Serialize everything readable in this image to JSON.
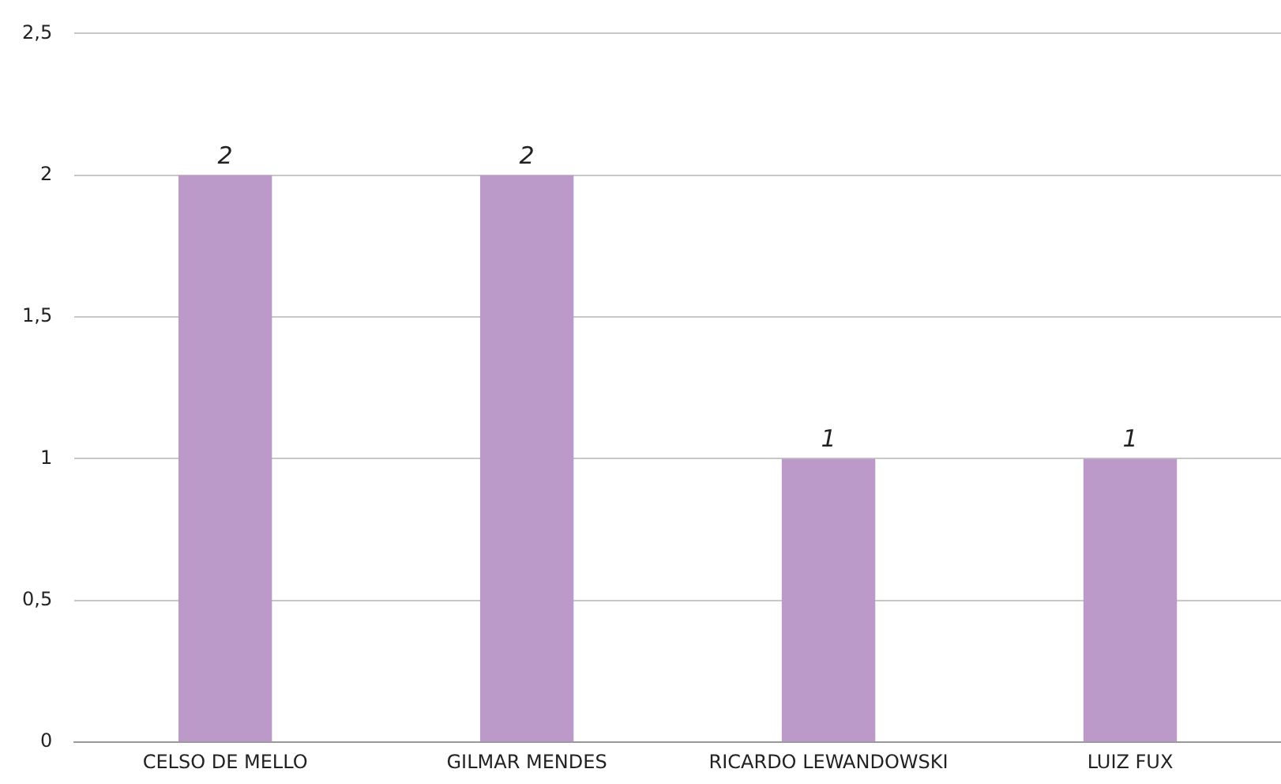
{
  "chart_data": {
    "type": "bar",
    "categories": [
      "CELSO DE MELLO",
      "GILMAR MENDES",
      "RICARDO LEWANDOWSKI",
      "LUIZ FUX"
    ],
    "values": [
      2,
      2,
      1,
      1
    ],
    "color": "#bb99c8",
    "ylim": [
      0,
      2.5
    ],
    "yticks": [
      0,
      {
        "value": 0.5,
        "label": "0,5"
      },
      1,
      {
        "value": 1.5,
        "label": "1,5"
      },
      2,
      {
        "value": 2.5,
        "label": "2,5"
      }
    ],
    "grid": "y",
    "legend": false,
    "data_labels": true
  }
}
